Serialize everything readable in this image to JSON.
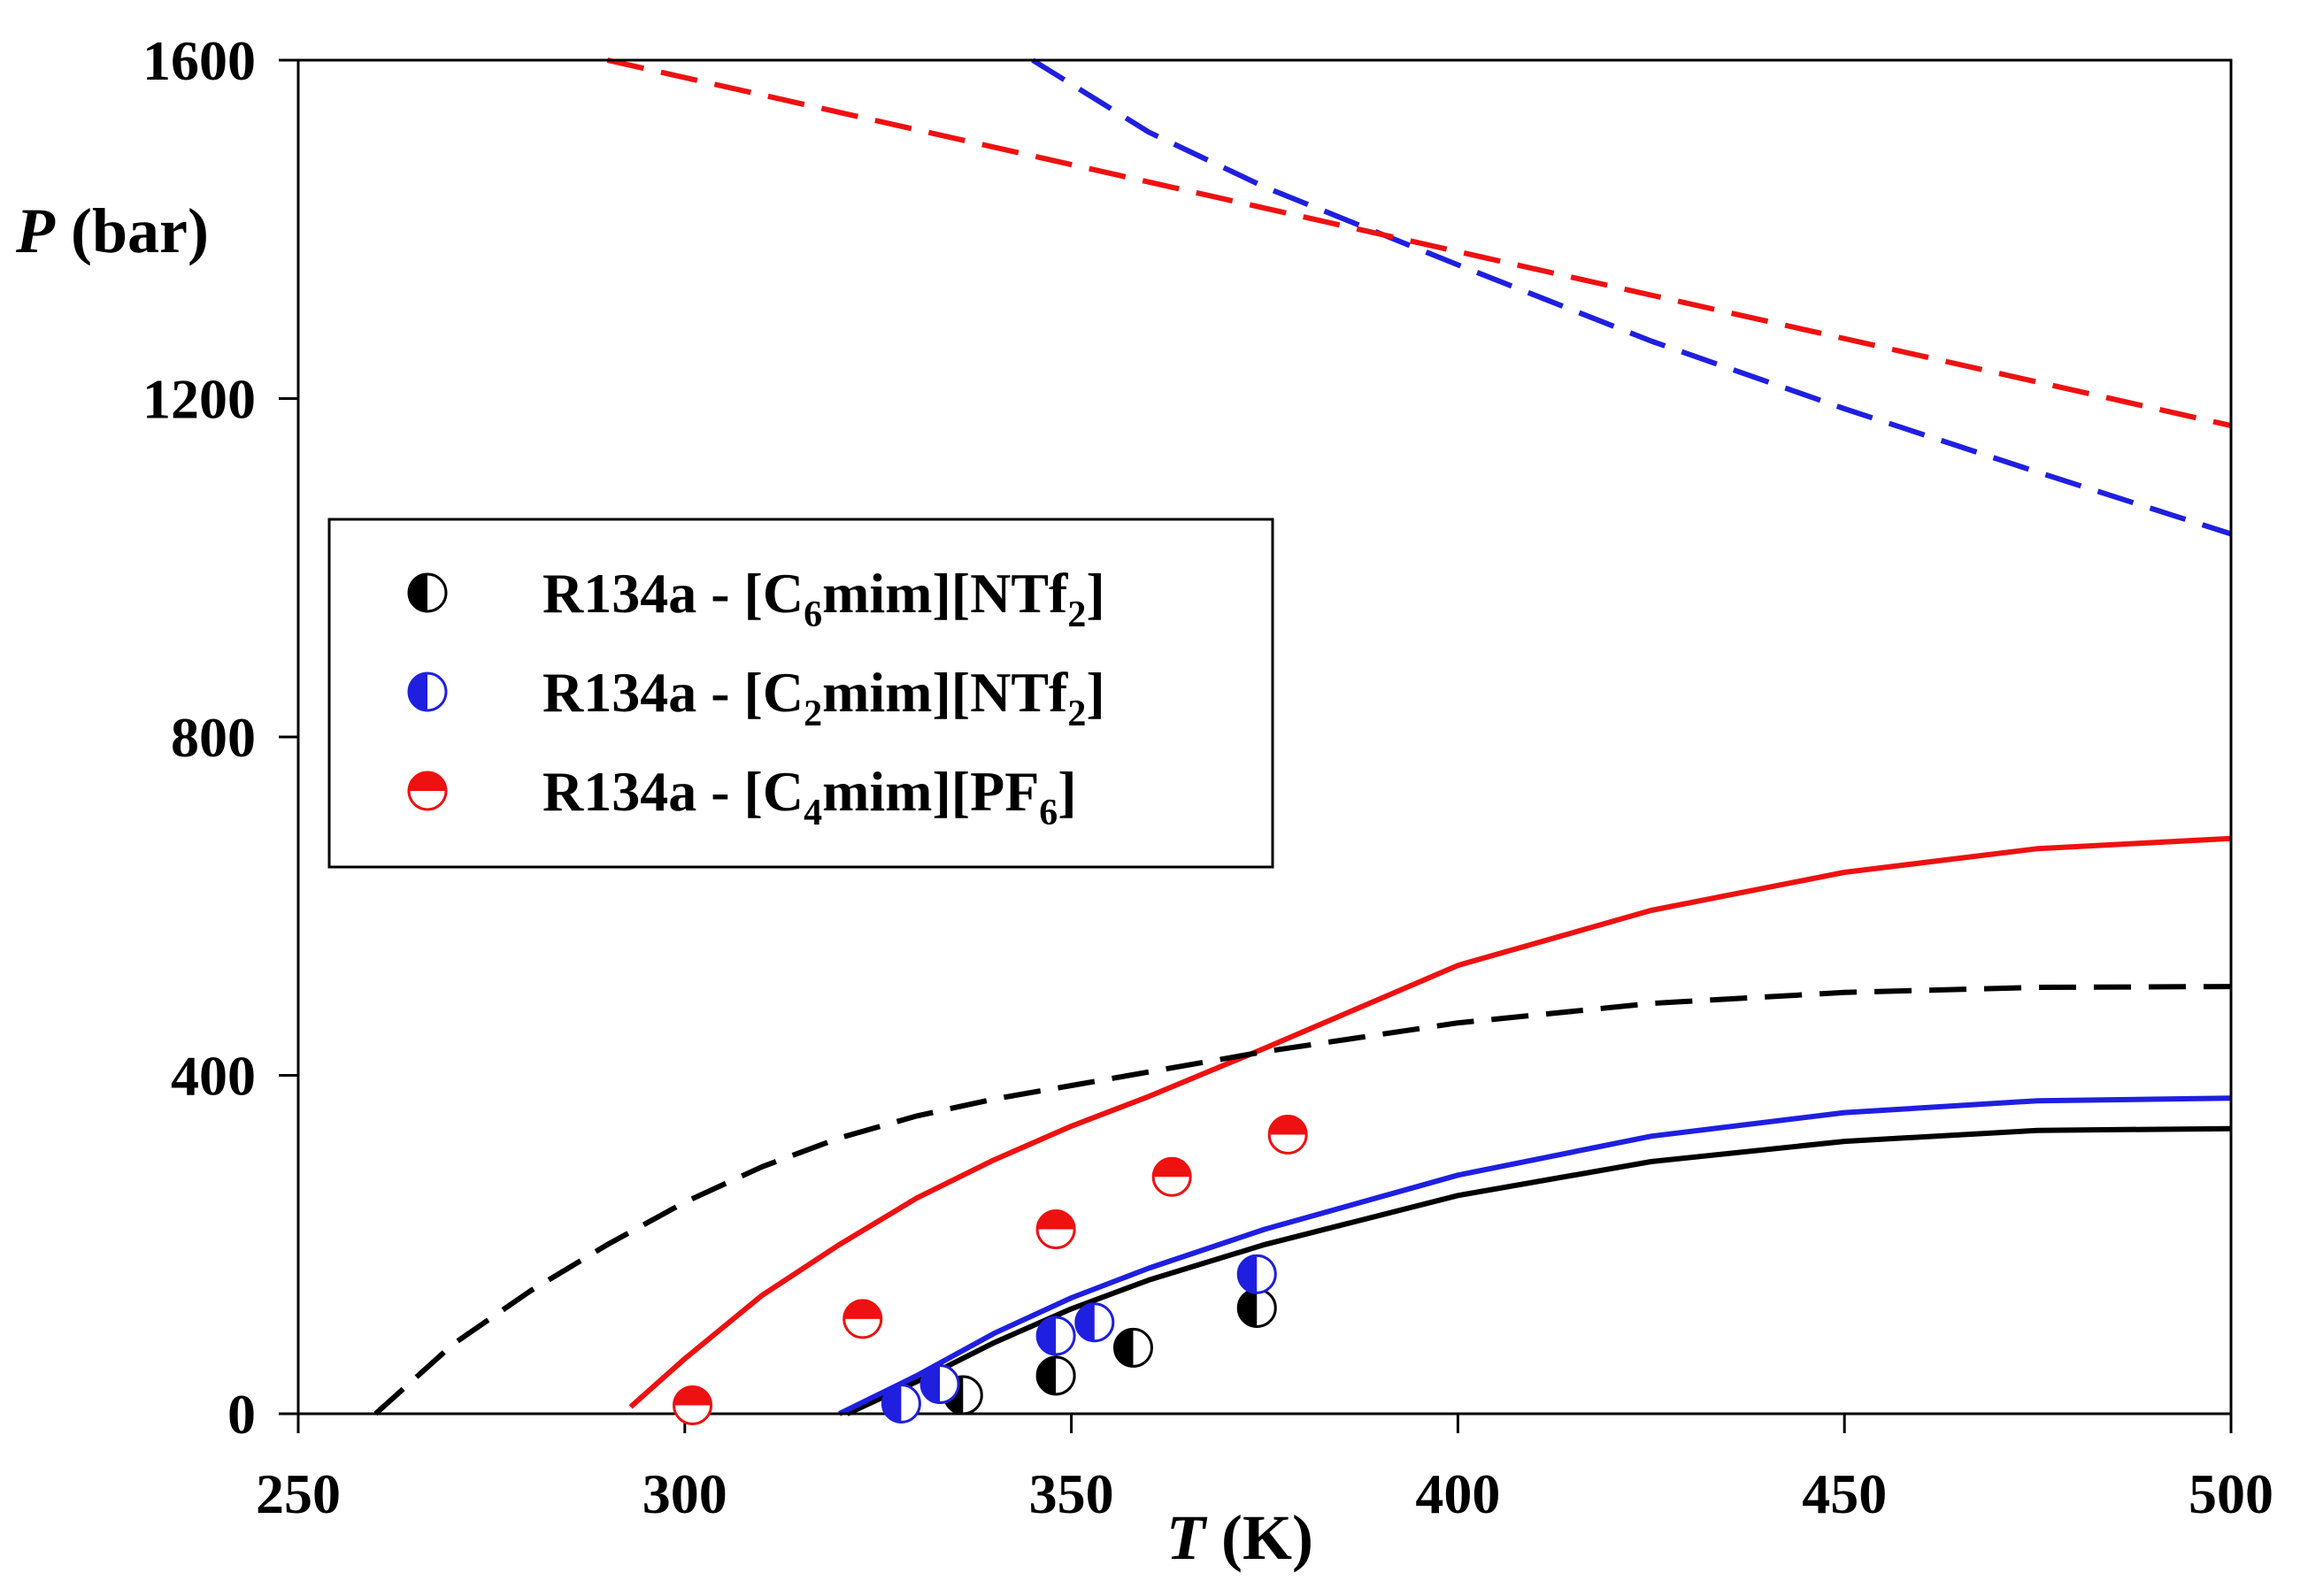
{
  "chart_data": {
    "type": "scatter",
    "title": "",
    "xlabel": {
      "italic": "T",
      "rest": " (K)"
    },
    "ylabel": {
      "italic": "P",
      "rest": " (bar)"
    },
    "xlim": [
      250,
      500
    ],
    "ylim": [
      0,
      1600
    ],
    "xticks": [
      250,
      300,
      350,
      400,
      450,
      500
    ],
    "yticks": [
      0,
      400,
      800,
      1200,
      1600
    ],
    "grid": false,
    "legend_position": "middle-left",
    "colors": {
      "black": "#000000",
      "blue": "#1f1fe0",
      "red": "#ee1111"
    },
    "series": [
      {
        "name": "R134a - [C6mim][NTf2]",
        "legend_parts": [
          {
            "text": "R134a - [C",
            "sub": false
          },
          {
            "text": "6",
            "sub": true
          },
          {
            "text": "mim][NTf",
            "sub": false
          },
          {
            "text": "2",
            "sub": true
          },
          {
            "text": "]",
            "sub": false
          }
        ],
        "color": "#000000",
        "marker": "half-left",
        "points": [
          [
            336,
            22
          ],
          [
            348,
            45
          ],
          [
            358,
            78
          ],
          [
            374,
            125
          ]
        ]
      },
      {
        "name": "R134a - [C2mim][NTf2]",
        "legend_parts": [
          {
            "text": "R134a - [C",
            "sub": false
          },
          {
            "text": "2",
            "sub": true
          },
          {
            "text": "mim][NTf",
            "sub": false
          },
          {
            "text": "2",
            "sub": true
          },
          {
            "text": "]",
            "sub": false
          }
        ],
        "color": "#1f1fe0",
        "marker": "half-left",
        "points": [
          [
            328,
            12
          ],
          [
            333,
            35
          ],
          [
            348,
            92
          ],
          [
            353,
            108
          ],
          [
            374,
            165
          ]
        ]
      },
      {
        "name": "R134a - [C4mim][PF6]",
        "legend_parts": [
          {
            "text": "R134a - [C",
            "sub": false
          },
          {
            "text": "4",
            "sub": true
          },
          {
            "text": "mim][PF",
            "sub": false
          },
          {
            "text": "6",
            "sub": true
          },
          {
            "text": "]",
            "sub": false
          }
        ],
        "color": "#ee1111",
        "marker": "half-top",
        "points": [
          [
            301,
            10
          ],
          [
            323,
            112
          ],
          [
            348,
            218
          ],
          [
            363,
            280
          ],
          [
            378,
            330
          ]
        ]
      }
    ],
    "lines": [
      {
        "id": "black-solid",
        "color": "#000000",
        "style": "solid",
        "points": [
          [
            321,
            0
          ],
          [
            330,
            38
          ],
          [
            340,
            84
          ],
          [
            350,
            124
          ],
          [
            360,
            158
          ],
          [
            375,
            200
          ],
          [
            400,
            258
          ],
          [
            425,
            298
          ],
          [
            450,
            322
          ],
          [
            475,
            335
          ],
          [
            500,
            337
          ]
        ]
      },
      {
        "id": "blue-solid",
        "color": "#1f1fe0",
        "style": "solid",
        "points": [
          [
            320,
            0
          ],
          [
            330,
            45
          ],
          [
            340,
            95
          ],
          [
            350,
            137
          ],
          [
            360,
            172
          ],
          [
            375,
            218
          ],
          [
            400,
            282
          ],
          [
            425,
            328
          ],
          [
            450,
            356
          ],
          [
            475,
            370
          ],
          [
            500,
            373
          ]
        ]
      },
      {
        "id": "red-solid",
        "color": "#ee1111",
        "style": "solid",
        "points": [
          [
            293,
            8
          ],
          [
            300,
            65
          ],
          [
            310,
            140
          ],
          [
            320,
            200
          ],
          [
            330,
            255
          ],
          [
            340,
            300
          ],
          [
            350,
            340
          ],
          [
            360,
            375
          ],
          [
            375,
            432
          ],
          [
            400,
            530
          ],
          [
            425,
            595
          ],
          [
            450,
            640
          ],
          [
            475,
            668
          ],
          [
            500,
            680
          ]
        ]
      },
      {
        "id": "black-dashed",
        "color": "#000000",
        "style": "dashed",
        "points": [
          [
            260,
            0
          ],
          [
            270,
            82
          ],
          [
            280,
            145
          ],
          [
            290,
            200
          ],
          [
            300,
            250
          ],
          [
            310,
            292
          ],
          [
            320,
            326
          ],
          [
            330,
            352
          ],
          [
            340,
            372
          ],
          [
            350,
            388
          ],
          [
            375,
            428
          ],
          [
            400,
            462
          ],
          [
            425,
            485
          ],
          [
            450,
            498
          ],
          [
            475,
            504
          ],
          [
            500,
            505
          ]
        ]
      },
      {
        "id": "blue-dashed",
        "color": "#1f1fe0",
        "style": "dashed",
        "points": [
          [
            345,
            1600
          ],
          [
            360,
            1515
          ],
          [
            375,
            1450
          ],
          [
            400,
            1358
          ],
          [
            425,
            1268
          ],
          [
            450,
            1188
          ],
          [
            475,
            1113
          ],
          [
            500,
            1040
          ]
        ]
      },
      {
        "id": "red-dashed",
        "color": "#ee1111",
        "style": "dashed",
        "points": [
          [
            290,
            1600
          ],
          [
            500,
            1168
          ]
        ]
      }
    ]
  }
}
